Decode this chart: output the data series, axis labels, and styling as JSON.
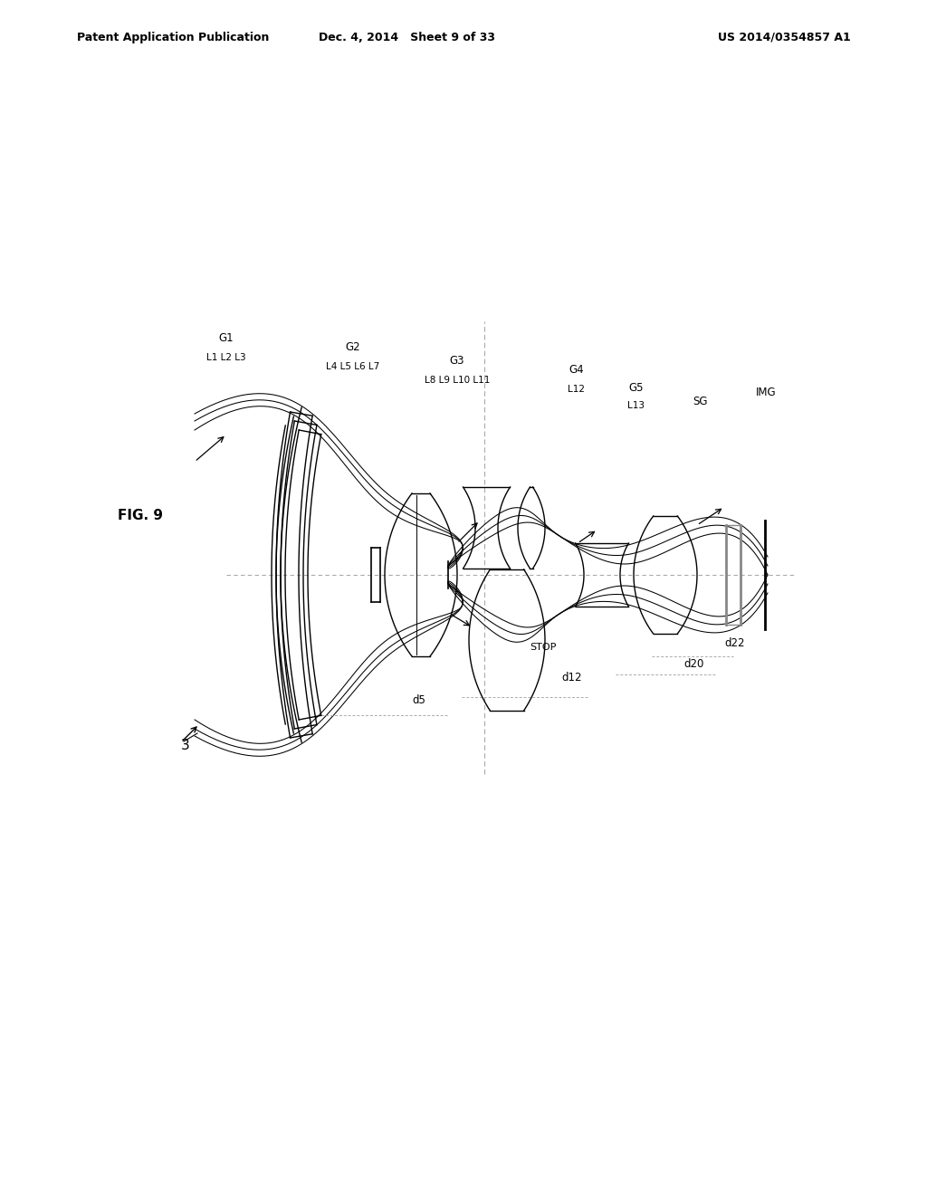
{
  "bg_color": "#ffffff",
  "line_color": "#000000",
  "axis_color": "#888888",
  "header_left": "Patent Application Publication",
  "header_mid": "Dec. 4, 2014   Sheet 9 of 33",
  "header_right": "US 2014/0354857 A1",
  "fig_label": "FIG. 9",
  "ray_source_label": "3",
  "group_labels": [
    "G1",
    "G2",
    "G3",
    "G4",
    "G5"
  ],
  "lens_labels": [
    [
      "L1",
      "L2",
      "L3"
    ],
    [
      "L4",
      "L5",
      "L6",
      "L7"
    ],
    [
      "L8",
      "L9",
      "L10",
      "L11"
    ],
    [
      "L12"
    ],
    [
      "L13"
    ]
  ],
  "distance_labels": [
    "d5",
    "d12",
    "d20",
    "d22"
  ],
  "stop_label": "STOP",
  "sg_label": "SG",
  "img_label": "IMG"
}
